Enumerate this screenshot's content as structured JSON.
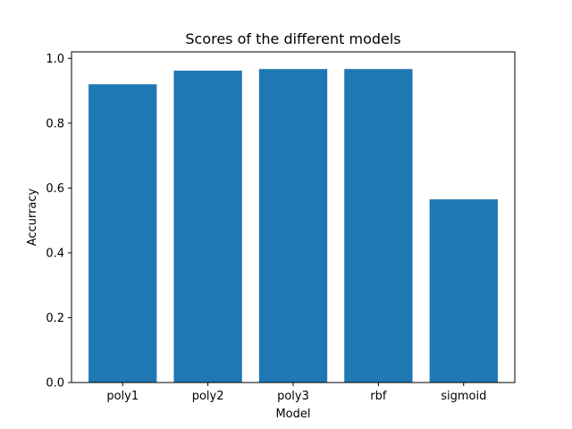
{
  "chart_data": {
    "type": "bar",
    "title": "Scores of the different models",
    "xlabel": "Model",
    "ylabel": "Accurracy",
    "categories": [
      "poly1",
      "poly2",
      "poly3",
      "rbf",
      "sigmoid"
    ],
    "values": [
      0.92,
      0.962,
      0.967,
      0.967,
      0.565
    ],
    "ylim": [
      0,
      1.02
    ],
    "yticks": [
      0.0,
      0.2,
      0.4,
      0.6,
      0.8,
      1.0
    ],
    "ytick_labels": [
      "0.0",
      "0.2",
      "0.4",
      "0.6",
      "0.8",
      "1.0"
    ],
    "bar_color": "#1f77b4",
    "grid": false,
    "legend": "none"
  }
}
